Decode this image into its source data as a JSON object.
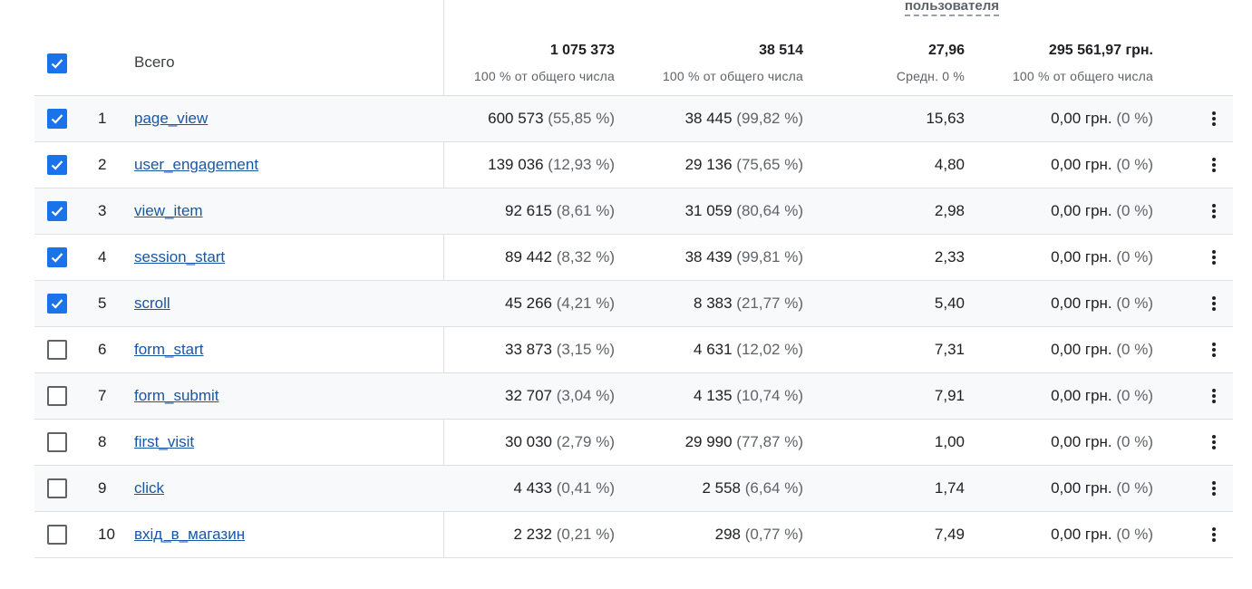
{
  "header": {
    "top_metric_label": "пользователя",
    "all_label": "Всего",
    "all_checked": true,
    "totals": [
      {
        "value": "1 075 373",
        "sub": "100 % от общего числа"
      },
      {
        "value": "38 514",
        "sub": "100 % от общего числа"
      },
      {
        "value": "27,96",
        "sub": "Средн. 0 %"
      },
      {
        "value": "295 561,97 грн.",
        "sub": "100 % от общего числа"
      }
    ]
  },
  "rows": [
    {
      "num": "1",
      "name": "page_view",
      "checked": true,
      "m1": "600 573",
      "m1p": "(55,85 %)",
      "m2": "38 445",
      "m2p": "(99,82 %)",
      "m3": "15,63",
      "m4": "0,00 грн.",
      "m4p": "(0 %)"
    },
    {
      "num": "2",
      "name": "user_engagement",
      "checked": true,
      "m1": "139 036",
      "m1p": "(12,93 %)",
      "m2": "29 136",
      "m2p": "(75,65 %)",
      "m3": "4,80",
      "m4": "0,00 грн.",
      "m4p": "(0 %)"
    },
    {
      "num": "3",
      "name": "view_item",
      "checked": true,
      "m1": "92 615",
      "m1p": "(8,61 %)",
      "m2": "31 059",
      "m2p": "(80,64 %)",
      "m3": "2,98",
      "m4": "0,00 грн.",
      "m4p": "(0 %)"
    },
    {
      "num": "4",
      "name": "session_start",
      "checked": true,
      "m1": "89 442",
      "m1p": "(8,32 %)",
      "m2": "38 439",
      "m2p": "(99,81 %)",
      "m3": "2,33",
      "m4": "0,00 грн.",
      "m4p": "(0 %)"
    },
    {
      "num": "5",
      "name": "scroll",
      "checked": true,
      "m1": "45 266",
      "m1p": "(4,21 %)",
      "m2": "8 383",
      "m2p": "(21,77 %)",
      "m3": "5,40",
      "m4": "0,00 грн.",
      "m4p": "(0 %)"
    },
    {
      "num": "6",
      "name": "form_start",
      "checked": false,
      "m1": "33 873",
      "m1p": "(3,15 %)",
      "m2": "4 631",
      "m2p": "(12,02 %)",
      "m3": "7,31",
      "m4": "0,00 грн.",
      "m4p": "(0 %)"
    },
    {
      "num": "7",
      "name": "form_submit",
      "checked": false,
      "m1": "32 707",
      "m1p": "(3,04 %)",
      "m2": "4 135",
      "m2p": "(10,74 %)",
      "m3": "7,91",
      "m4": "0,00 грн.",
      "m4p": "(0 %)"
    },
    {
      "num": "8",
      "name": "first_visit",
      "checked": false,
      "m1": "30 030",
      "m1p": "(2,79 %)",
      "m2": "29 990",
      "m2p": "(77,87 %)",
      "m3": "1,00",
      "m4": "0,00 грн.",
      "m4p": "(0 %)"
    },
    {
      "num": "9",
      "name": "click",
      "checked": false,
      "m1": "4 433",
      "m1p": "(0,41 %)",
      "m2": "2 558",
      "m2p": "(6,64 %)",
      "m3": "1,74",
      "m4": "0,00 грн.",
      "m4p": "(0 %)"
    },
    {
      "num": "10",
      "name": "вхід_в_магазин",
      "checked": false,
      "m1": "2 232",
      "m1p": "(0,21 %)",
      "m2": "298",
      "m2p": "(0,77 %)",
      "m3": "7,49",
      "m4": "0,00 грн.",
      "m4p": "(0 %)"
    }
  ],
  "icons": {
    "checkbox_checked": "check-icon",
    "row_menu": "more-vert-icon"
  },
  "colors": {
    "accent": "#1a73e8",
    "link": "#1a56a4",
    "alt_row": "#f8f9fa"
  }
}
